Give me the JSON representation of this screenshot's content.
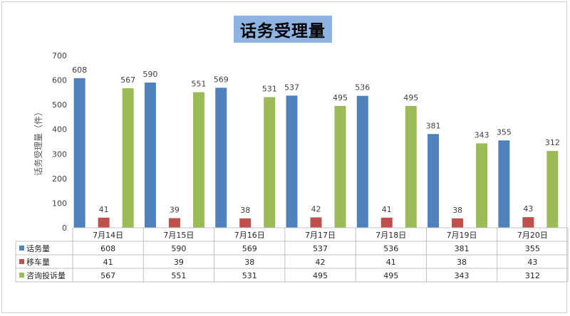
{
  "chart_data": {
    "type": "bar",
    "title": "话务受理量",
    "ylabel": "话务受理量（件）",
    "ylim": [
      0,
      700
    ],
    "yticks": [
      0,
      100,
      200,
      300,
      400,
      500,
      600,
      700
    ],
    "categories": [
      "7月14日",
      "7月15日",
      "7月16日",
      "7月17日",
      "7月18日",
      "7月19日",
      "7月20日"
    ],
    "series": [
      {
        "name": "话务量",
        "color": "#4f81bd",
        "values": [
          608,
          590,
          569,
          537,
          536,
          381,
          355
        ]
      },
      {
        "name": "移车量",
        "color": "#c0504d",
        "values": [
          41,
          39,
          38,
          42,
          41,
          38,
          43
        ]
      },
      {
        "name": "咨询投诉量",
        "color": "#9bbb59",
        "values": [
          567,
          551,
          531,
          495,
          495,
          343,
          312
        ]
      }
    ],
    "grid": false,
    "legend": "data-table"
  }
}
